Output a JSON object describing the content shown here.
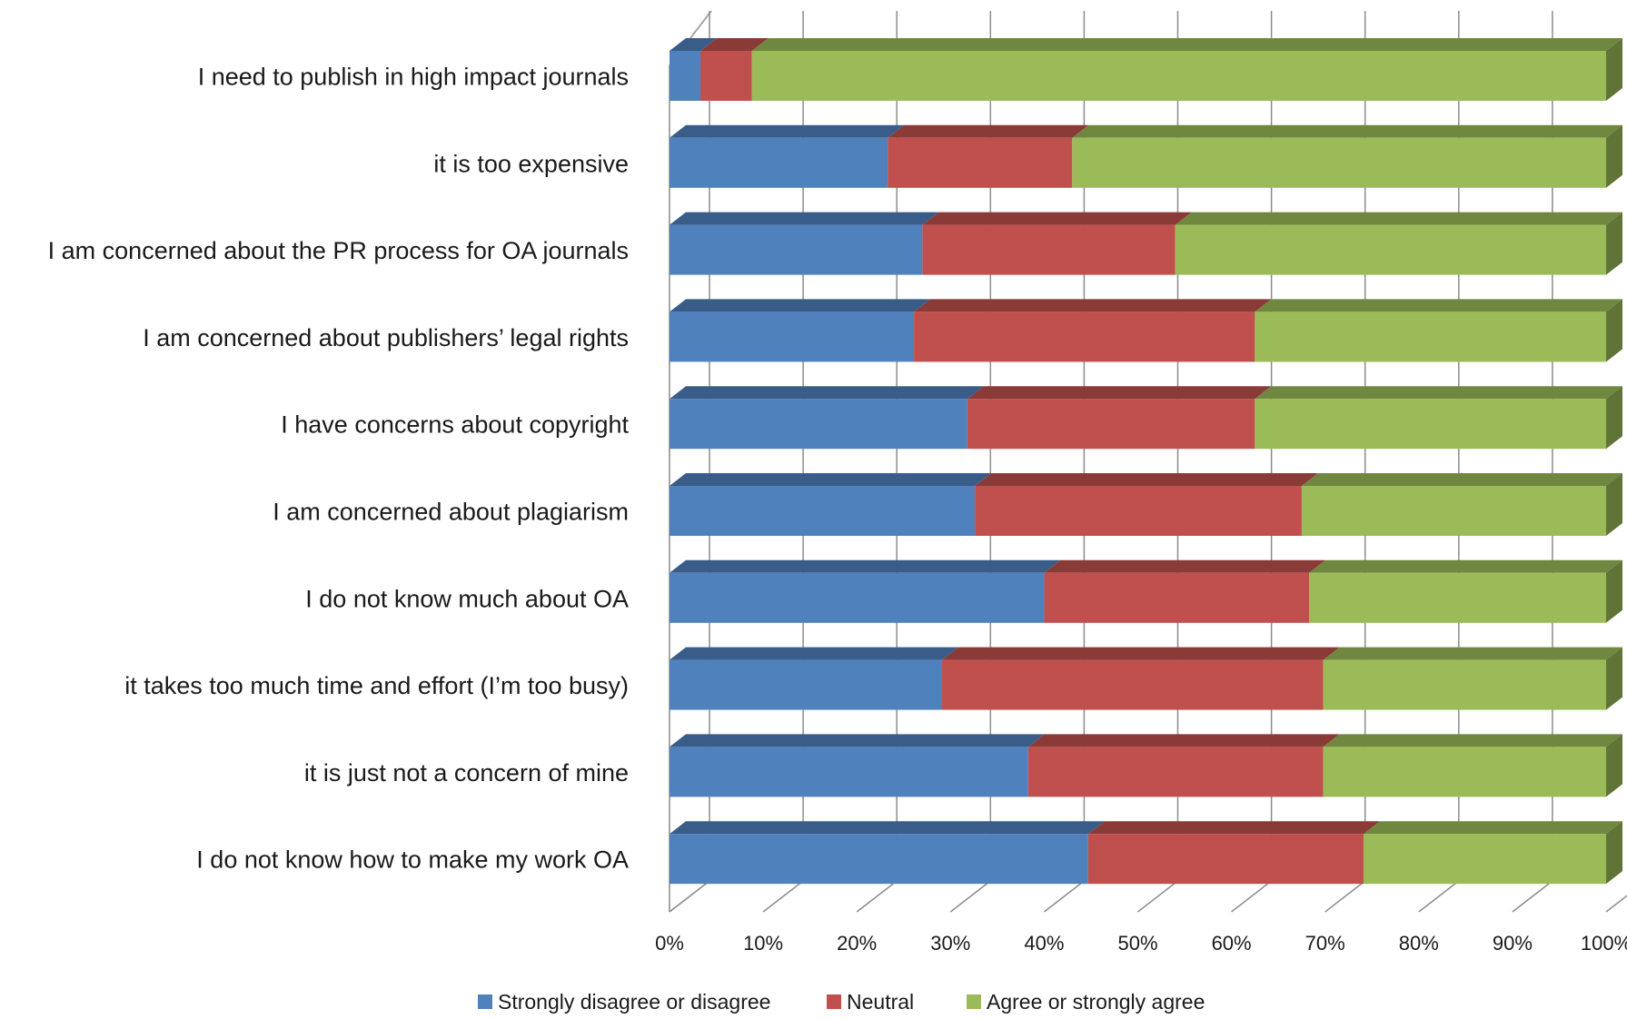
{
  "chart_data": {
    "type": "bar",
    "orientation": "horizontal",
    "stacked": "percent",
    "three_d": true,
    "categories": [
      "I need to publish in high impact journals",
      "it is too expensive",
      "I am concerned about the PR process for OA journals",
      "I am concerned about publishers’ legal rights",
      "I have concerns about copyright",
      "I am concerned about plagiarism",
      "I do not know much about OA",
      "it takes too much time and effort (I’m too busy)",
      "it is just not a concern of mine",
      "I do not know how to make my work OA"
    ],
    "series": [
      {
        "name": "Strongly disagree or disagree",
        "color": "#4F81BD",
        "values": [
          3.3,
          23.3,
          27.0,
          26.1,
          31.8,
          32.6,
          40.0,
          29.1,
          38.3,
          44.7
        ]
      },
      {
        "name": "Neutral",
        "color": "#C0504D",
        "values": [
          5.5,
          19.7,
          27.0,
          36.4,
          30.7,
          34.9,
          28.3,
          40.7,
          31.5,
          29.4
        ]
      },
      {
        "name": "Agree or strongly agree",
        "color": "#9BBB59",
        "values": [
          91.2,
          57.0,
          46.0,
          37.5,
          37.5,
          32.5,
          31.7,
          30.2,
          30.2,
          25.9
        ]
      }
    ],
    "x_ticks": [
      "0%",
      "10%",
      "20%",
      "30%",
      "40%",
      "50%",
      "60%",
      "70%",
      "80%",
      "90%",
      "100%"
    ],
    "xlim": [
      0,
      100
    ],
    "grid": true,
    "legend_position": "bottom"
  }
}
